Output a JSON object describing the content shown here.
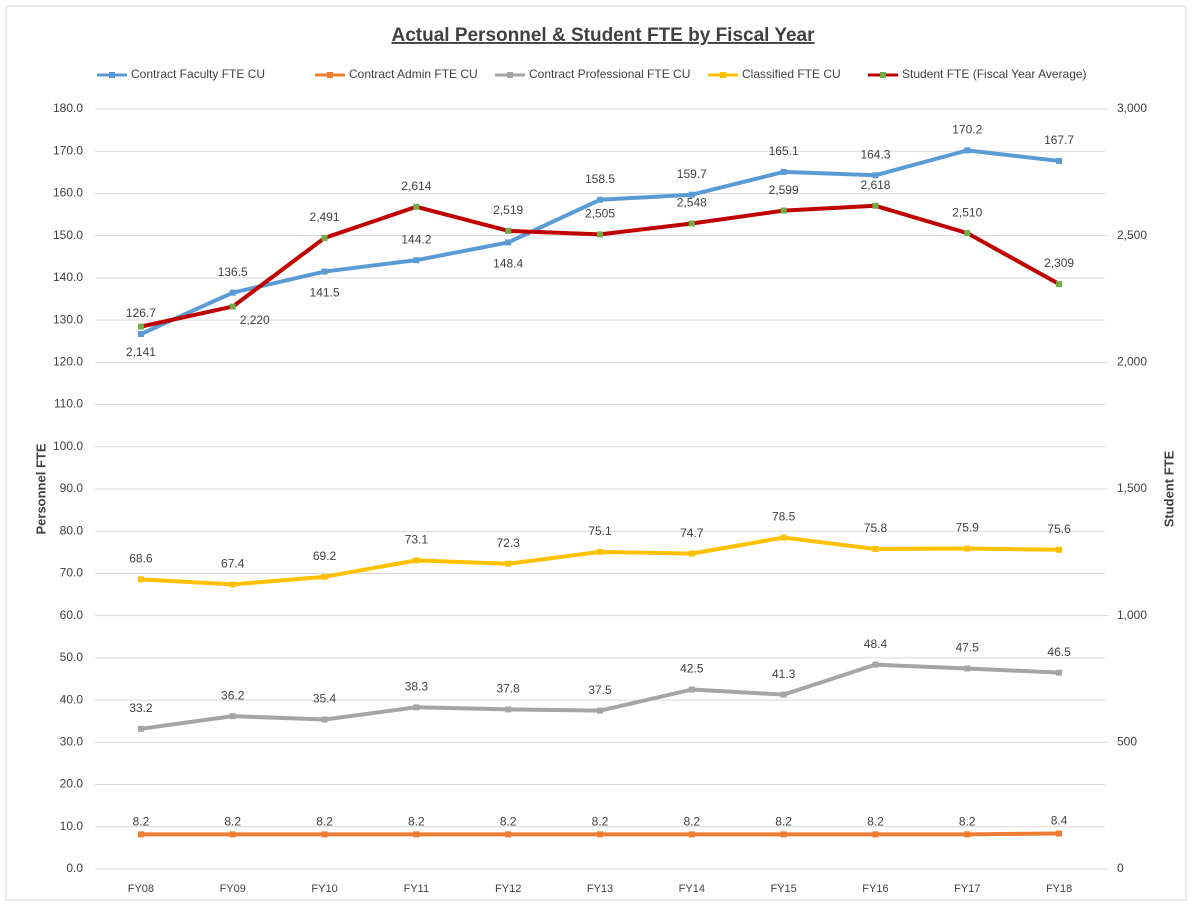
{
  "chart_data": {
    "type": "line",
    "title": "Actual Personnel & Student FTE by Fiscal Year",
    "y_label": "Personnel FTE",
    "y2_label": "Student FTE",
    "categories": [
      "FY08",
      "FY09",
      "FY10",
      "FY11",
      "FY12",
      "FY13",
      "FY14",
      "FY15",
      "FY16",
      "FY17",
      "FY18"
    ],
    "series": [
      {
        "name": "Contract Faculty FTE CU",
        "color": "#5b9bd5",
        "values": [
          126.7,
          136.5,
          141.5,
          144.2,
          148.4,
          158.5,
          159.7,
          165.1,
          164.3,
          170.2,
          167.7
        ]
      },
      {
        "name": "Contract Admin FTE CU",
        "color": "#ed7d31",
        "values": [
          8.2,
          8.2,
          8.2,
          8.2,
          8.2,
          8.2,
          8.2,
          8.2,
          8.2,
          8.2,
          8.4
        ]
      },
      {
        "name": "Contract Professional FTE CU",
        "color": "#a5a5a5",
        "values": [
          33.2,
          36.2,
          35.4,
          38.3,
          37.8,
          37.5,
          42.5,
          41.3,
          48.4,
          47.5,
          46.5
        ]
      },
      {
        "name": "Classified FTE CU",
        "color": "#ffc000",
        "values": [
          68.6,
          67.4,
          69.2,
          73.1,
          72.3,
          75.1,
          74.7,
          78.5,
          75.8,
          75.9,
          75.6
        ]
      },
      {
        "name": "Student FTE (Fiscal Year Average)",
        "color": "#c00000",
        "marker_color": "#70ad47",
        "axis": "y2",
        "values": [
          2141,
          2220,
          2491,
          2614,
          2519,
          2505,
          2548,
          2599,
          2618,
          2510,
          2309
        ],
        "value_labels": [
          "2,141",
          "2,220",
          "2,491",
          "2,614",
          "2,519",
          "2,505",
          "2,548",
          "2,599",
          "2,618",
          "2,510",
          "2,309"
        ]
      }
    ],
    "ylim": [
      0,
      180
    ],
    "yticks": [
      {
        "value": 0,
        "label": "0.0"
      },
      {
        "value": 10,
        "label": "10.0"
      },
      {
        "value": 20,
        "label": "20.0"
      },
      {
        "value": 30,
        "label": "30.0"
      },
      {
        "value": 40,
        "label": "40.0"
      },
      {
        "value": 50,
        "label": "50.0"
      },
      {
        "value": 60,
        "label": "60.0"
      },
      {
        "value": 70,
        "label": "70.0"
      },
      {
        "value": 80,
        "label": "80.0"
      },
      {
        "value": 90,
        "label": "90.0"
      },
      {
        "value": 100,
        "label": "100.0"
      },
      {
        "value": 110,
        "label": "110.0"
      },
      {
        "value": 120,
        "label": "120.0"
      },
      {
        "value": 130,
        "label": "130.0"
      },
      {
        "value": 140,
        "label": "140.0"
      },
      {
        "value": 150,
        "label": "150.0"
      },
      {
        "value": 160,
        "label": "160.0"
      },
      {
        "value": 170,
        "label": "170.0"
      },
      {
        "value": 180,
        "label": "180.0"
      }
    ],
    "y2lim": [
      0,
      3000
    ],
    "y2ticks": [
      0,
      500,
      {
        "value": 1000,
        "label": "1,000"
      },
      {
        "value": 1500,
        "label": "1,500"
      },
      {
        "value": 2000,
        "label": "2,000"
      },
      {
        "value": 2500,
        "label": "2,500"
      },
      {
        "value": 3000,
        "label": "3,000"
      }
    ],
    "grid": true,
    "legend": "top"
  }
}
